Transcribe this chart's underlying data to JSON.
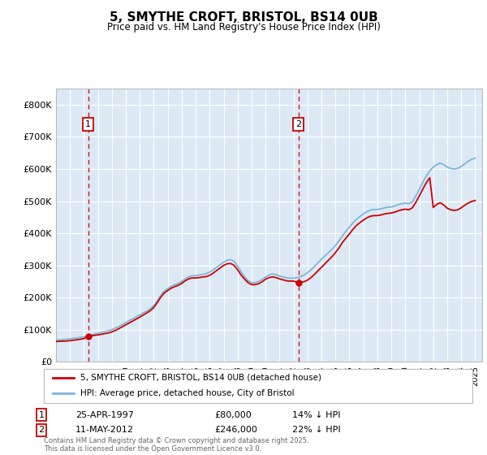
{
  "title": "5, SMYTHE CROFT, BRISTOL, BS14 0UB",
  "subtitle": "Price paid vs. HM Land Registry's House Price Index (HPI)",
  "background_color": "#ffffff",
  "plot_bg_color": "#dce9f5",
  "grid_color": "#ffffff",
  "hpi_color": "#7ab6d9",
  "price_color": "#cc0000",
  "dashed_color": "#cc0000",
  "ylim": [
    0,
    850000
  ],
  "yticks": [
    0,
    100000,
    200000,
    300000,
    400000,
    500000,
    600000,
    700000,
    800000
  ],
  "ytick_labels": [
    "£0",
    "£100K",
    "£200K",
    "£300K",
    "£400K",
    "£500K",
    "£600K",
    "£700K",
    "£800K"
  ],
  "xticks": [
    1995,
    1996,
    1997,
    1998,
    1999,
    2000,
    2001,
    2002,
    2003,
    2004,
    2005,
    2006,
    2007,
    2008,
    2009,
    2010,
    2011,
    2012,
    2013,
    2014,
    2015,
    2016,
    2017,
    2018,
    2019,
    2020,
    2021,
    2022,
    2023,
    2024,
    2025
  ],
  "sale1_year": 1997.31,
  "sale1_price": 80000,
  "sale1_label": "1",
  "sale1_date": "25-APR-1997",
  "sale1_pct": "14%",
  "sale2_year": 2012.36,
  "sale2_price": 246000,
  "sale2_label": "2",
  "sale2_date": "11-MAY-2012",
  "sale2_pct": "22%",
  "legend_line1": "5, SMYTHE CROFT, BRISTOL, BS14 0UB (detached house)",
  "legend_line2": "HPI: Average price, detached house, City of Bristol",
  "footer": "Contains HM Land Registry data © Crown copyright and database right 2025.\nThis data is licensed under the Open Government Licence v3.0.",
  "hpi_data": [
    [
      1995.0,
      67000
    ],
    [
      1995.25,
      68000
    ],
    [
      1995.5,
      69000
    ],
    [
      1995.75,
      70000
    ],
    [
      1996.0,
      71500
    ],
    [
      1996.25,
      73000
    ],
    [
      1996.5,
      74500
    ],
    [
      1996.75,
      76000
    ],
    [
      1997.0,
      78000
    ],
    [
      1997.25,
      80500
    ],
    [
      1997.5,
      83000
    ],
    [
      1997.75,
      86000
    ],
    [
      1998.0,
      89000
    ],
    [
      1998.25,
      91500
    ],
    [
      1998.5,
      94000
    ],
    [
      1998.75,
      96500
    ],
    [
      1999.0,
      100000
    ],
    [
      1999.25,
      105000
    ],
    [
      1999.5,
      110000
    ],
    [
      1999.75,
      116000
    ],
    [
      2000.0,
      122000
    ],
    [
      2000.25,
      128000
    ],
    [
      2000.5,
      134000
    ],
    [
      2000.75,
      140000
    ],
    [
      2001.0,
      146000
    ],
    [
      2001.25,
      152000
    ],
    [
      2001.5,
      158000
    ],
    [
      2001.75,
      165000
    ],
    [
      2002.0,
      175000
    ],
    [
      2002.25,
      190000
    ],
    [
      2002.5,
      207000
    ],
    [
      2002.75,
      220000
    ],
    [
      2003.0,
      228000
    ],
    [
      2003.25,
      235000
    ],
    [
      2003.5,
      240000
    ],
    [
      2003.75,
      244000
    ],
    [
      2004.0,
      250000
    ],
    [
      2004.25,
      258000
    ],
    [
      2004.5,
      264000
    ],
    [
      2004.75,
      268000
    ],
    [
      2005.0,
      268000
    ],
    [
      2005.25,
      270000
    ],
    [
      2005.5,
      272000
    ],
    [
      2005.75,
      274000
    ],
    [
      2006.0,
      279000
    ],
    [
      2006.25,
      286000
    ],
    [
      2006.5,
      294000
    ],
    [
      2006.75,
      302000
    ],
    [
      2007.0,
      310000
    ],
    [
      2007.25,
      316000
    ],
    [
      2007.5,
      318000
    ],
    [
      2007.75,
      312000
    ],
    [
      2008.0,
      298000
    ],
    [
      2008.25,
      280000
    ],
    [
      2008.5,
      264000
    ],
    [
      2008.75,
      252000
    ],
    [
      2009.0,
      246000
    ],
    [
      2009.25,
      246000
    ],
    [
      2009.5,
      250000
    ],
    [
      2009.75,
      256000
    ],
    [
      2010.0,
      264000
    ],
    [
      2010.25,
      270000
    ],
    [
      2010.5,
      273000
    ],
    [
      2010.75,
      271000
    ],
    [
      2011.0,
      267000
    ],
    [
      2011.25,
      264000
    ],
    [
      2011.5,
      261000
    ],
    [
      2011.75,
      260000
    ],
    [
      2012.0,
      260000
    ],
    [
      2012.25,
      262000
    ],
    [
      2012.5,
      265000
    ],
    [
      2012.75,
      270000
    ],
    [
      2013.0,
      277000
    ],
    [
      2013.25,
      286000
    ],
    [
      2013.5,
      297000
    ],
    [
      2013.75,
      308000
    ],
    [
      2014.0,
      319000
    ],
    [
      2014.25,
      330000
    ],
    [
      2014.5,
      340000
    ],
    [
      2014.75,
      350000
    ],
    [
      2015.0,
      362000
    ],
    [
      2015.25,
      376000
    ],
    [
      2015.5,
      392000
    ],
    [
      2015.75,
      406000
    ],
    [
      2016.0,
      419000
    ],
    [
      2016.25,
      432000
    ],
    [
      2016.5,
      443000
    ],
    [
      2016.75,
      452000
    ],
    [
      2017.0,
      460000
    ],
    [
      2017.25,
      467000
    ],
    [
      2017.5,
      472000
    ],
    [
      2017.75,
      474000
    ],
    [
      2018.0,
      474000
    ],
    [
      2018.25,
      476000
    ],
    [
      2018.5,
      479000
    ],
    [
      2018.75,
      481000
    ],
    [
      2019.0,
      482000
    ],
    [
      2019.25,
      485000
    ],
    [
      2019.5,
      489000
    ],
    [
      2019.75,
      492000
    ],
    [
      2020.0,
      494000
    ],
    [
      2020.25,
      492000
    ],
    [
      2020.5,
      498000
    ],
    [
      2020.75,
      516000
    ],
    [
      2021.0,
      536000
    ],
    [
      2021.25,
      558000
    ],
    [
      2021.5,
      578000
    ],
    [
      2021.75,
      594000
    ],
    [
      2022.0,
      606000
    ],
    [
      2022.25,
      614000
    ],
    [
      2022.5,
      618000
    ],
    [
      2022.75,
      614000
    ],
    [
      2023.0,
      606000
    ],
    [
      2023.25,
      602000
    ],
    [
      2023.5,
      600000
    ],
    [
      2023.75,
      602000
    ],
    [
      2024.0,
      608000
    ],
    [
      2024.25,
      616000
    ],
    [
      2024.5,
      624000
    ],
    [
      2024.75,
      630000
    ],
    [
      2025.0,
      634000
    ]
  ],
  "price_data": [
    [
      1995.0,
      63000
    ],
    [
      1995.25,
      63500
    ],
    [
      1995.5,
      64000
    ],
    [
      1995.75,
      64500
    ],
    [
      1996.0,
      65500
    ],
    [
      1996.25,
      67000
    ],
    [
      1996.5,
      68500
    ],
    [
      1996.75,
      70000
    ],
    [
      1997.0,
      72000
    ],
    [
      1997.31,
      80000
    ],
    [
      1997.75,
      82000
    ],
    [
      1998.0,
      83500
    ],
    [
      1998.25,
      85500
    ],
    [
      1998.5,
      87500
    ],
    [
      1998.75,
      89500
    ],
    [
      1999.0,
      93000
    ],
    [
      1999.25,
      97500
    ],
    [
      1999.5,
      103000
    ],
    [
      1999.75,
      109000
    ],
    [
      2000.0,
      115000
    ],
    [
      2000.25,
      121000
    ],
    [
      2000.5,
      127000
    ],
    [
      2000.75,
      133000
    ],
    [
      2001.0,
      139000
    ],
    [
      2001.25,
      145500
    ],
    [
      2001.5,
      152000
    ],
    [
      2001.75,
      159000
    ],
    [
      2002.0,
      169000
    ],
    [
      2002.25,
      184000
    ],
    [
      2002.5,
      201000
    ],
    [
      2002.75,
      214000
    ],
    [
      2003.0,
      222000
    ],
    [
      2003.25,
      229000
    ],
    [
      2003.5,
      234000
    ],
    [
      2003.75,
      238000
    ],
    [
      2004.0,
      244000
    ],
    [
      2004.25,
      252000
    ],
    [
      2004.5,
      258000
    ],
    [
      2004.75,
      261000
    ],
    [
      2005.0,
      261000
    ],
    [
      2005.25,
      262000
    ],
    [
      2005.5,
      264000
    ],
    [
      2005.75,
      265000
    ],
    [
      2006.0,
      269000
    ],
    [
      2006.25,
      276000
    ],
    [
      2006.5,
      284000
    ],
    [
      2006.75,
      292000
    ],
    [
      2007.0,
      300000
    ],
    [
      2007.25,
      305000
    ],
    [
      2007.5,
      306000
    ],
    [
      2007.75,
      300000
    ],
    [
      2008.0,
      286000
    ],
    [
      2008.25,
      270000
    ],
    [
      2008.5,
      257000
    ],
    [
      2008.75,
      246000
    ],
    [
      2009.0,
      240000
    ],
    [
      2009.25,
      240000
    ],
    [
      2009.5,
      243000
    ],
    [
      2009.75,
      249000
    ],
    [
      2010.0,
      257000
    ],
    [
      2010.25,
      262000
    ],
    [
      2010.5,
      264000
    ],
    [
      2010.75,
      262000
    ],
    [
      2011.0,
      258000
    ],
    [
      2011.25,
      255000
    ],
    [
      2011.5,
      252000
    ],
    [
      2011.75,
      251000
    ],
    [
      2012.0,
      251000
    ],
    [
      2012.36,
      246000
    ],
    [
      2012.75,
      249000
    ],
    [
      2013.0,
      254000
    ],
    [
      2013.25,
      262000
    ],
    [
      2013.5,
      272000
    ],
    [
      2013.75,
      283000
    ],
    [
      2014.0,
      294000
    ],
    [
      2014.25,
      305000
    ],
    [
      2014.5,
      316000
    ],
    [
      2014.75,
      327000
    ],
    [
      2015.0,
      340000
    ],
    [
      2015.25,
      354000
    ],
    [
      2015.5,
      371000
    ],
    [
      2015.75,
      385000
    ],
    [
      2016.0,
      398000
    ],
    [
      2016.25,
      412000
    ],
    [
      2016.5,
      424000
    ],
    [
      2016.75,
      433000
    ],
    [
      2017.0,
      441000
    ],
    [
      2017.25,
      448000
    ],
    [
      2017.5,
      453000
    ],
    [
      2017.75,
      455000
    ],
    [
      2018.0,
      455000
    ],
    [
      2018.25,
      457000
    ],
    [
      2018.5,
      460000
    ],
    [
      2018.75,
      462000
    ],
    [
      2019.0,
      463000
    ],
    [
      2019.25,
      466000
    ],
    [
      2019.5,
      470000
    ],
    [
      2019.75,
      473000
    ],
    [
      2020.0,
      475000
    ],
    [
      2020.25,
      473000
    ],
    [
      2020.5,
      479000
    ],
    [
      2020.75,
      496000
    ],
    [
      2021.0,
      516000
    ],
    [
      2021.25,
      537000
    ],
    [
      2021.5,
      557000
    ],
    [
      2021.75,
      573000
    ],
    [
      2022.0,
      480000
    ],
    [
      2022.25,
      490000
    ],
    [
      2022.5,
      495000
    ],
    [
      2022.75,
      488000
    ],
    [
      2023.0,
      478000
    ],
    [
      2023.25,
      473000
    ],
    [
      2023.5,
      471000
    ],
    [
      2023.75,
      473000
    ],
    [
      2024.0,
      479000
    ],
    [
      2024.25,
      487000
    ],
    [
      2024.5,
      494000
    ],
    [
      2024.75,
      499000
    ],
    [
      2025.0,
      502000
    ]
  ]
}
